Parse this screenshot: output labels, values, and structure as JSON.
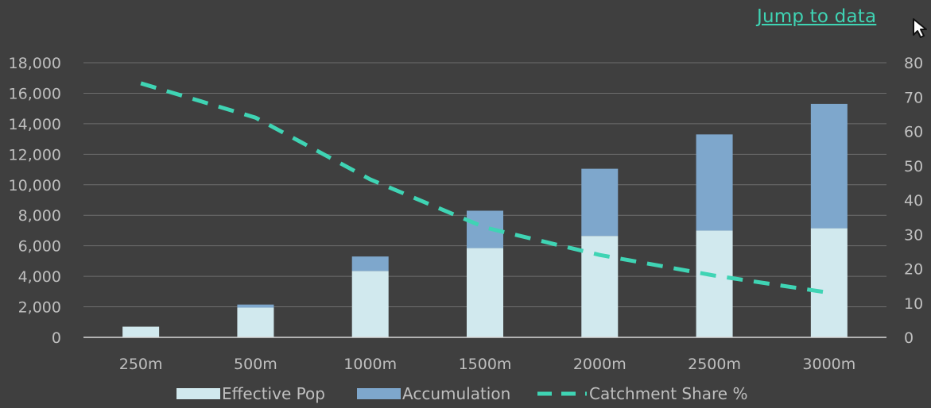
{
  "header": {
    "jump_link": "Jump to data"
  },
  "colors": {
    "background": "#3f3f3f",
    "grid": "#6e6e6e",
    "effective_pop": "#d1e9ee",
    "accumulation": "#7ea7cc",
    "catchment_share": "#3fd4b4",
    "text": "#bfbfbf"
  },
  "chart_data": {
    "type": "bar",
    "stacked": true,
    "categories": [
      "250m",
      "500m",
      "1000m",
      "1500m",
      "2000m",
      "2500m",
      "3000m"
    ],
    "series": [
      {
        "name": "Effective Pop",
        "type": "bar",
        "axis": "left",
        "values": [
          700,
          1950,
          4350,
          5850,
          6650,
          7000,
          7150
        ]
      },
      {
        "name": "Accumulation",
        "type": "bar",
        "axis": "left",
        "values": [
          0,
          200,
          950,
          2450,
          4400,
          6300,
          8150
        ]
      },
      {
        "name": "Catchment Share %",
        "type": "line",
        "style": "dashed",
        "axis": "right",
        "values": [
          74,
          64,
          46,
          32,
          24,
          18,
          13
        ]
      }
    ],
    "y_left": {
      "range": [
        0,
        18000
      ],
      "ticks": [
        "0",
        "2,000",
        "4,000",
        "6,000",
        "8,000",
        "10,000",
        "12,000",
        "14,000",
        "16,000",
        "18,000"
      ]
    },
    "y_right": {
      "range": [
        0,
        80
      ],
      "ticks": [
        "0",
        "10",
        "20",
        "30",
        "40",
        "50",
        "60",
        "70",
        "80"
      ]
    },
    "grid": true,
    "legend_position": "bottom"
  }
}
